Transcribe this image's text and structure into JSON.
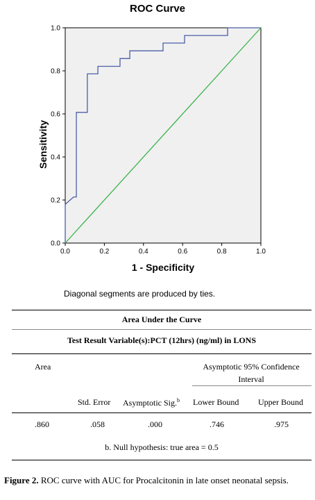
{
  "chart_data": {
    "type": "line",
    "title": "ROC Curve",
    "xlabel": "1 - Specificity",
    "ylabel": "Sensitivity",
    "xlim": [
      0.0,
      1.0
    ],
    "ylim": [
      0.0,
      1.0
    ],
    "xticks": [
      "0.0",
      "0.2",
      "0.4",
      "0.6",
      "0.8",
      "1.0"
    ],
    "yticks": [
      "0.0",
      "0.2",
      "0.4",
      "0.6",
      "0.8",
      "1.0"
    ],
    "grid": false,
    "series": [
      {
        "color": "#4a5ea8",
        "x": [
          0.0,
          0.0,
          0.043,
          0.057,
          0.057,
          0.113,
          0.113,
          0.167,
          0.167,
          0.28,
          0.28,
          0.33,
          0.33,
          0.5,
          0.5,
          0.61,
          0.61,
          0.83,
          0.83,
          1.0
        ],
        "y": [
          0.0,
          0.18,
          0.214,
          0.214,
          0.607,
          0.607,
          0.786,
          0.786,
          0.821,
          0.821,
          0.857,
          0.857,
          0.893,
          0.893,
          0.929,
          0.929,
          0.964,
          0.964,
          1.0,
          1.0
        ]
      },
      {
        "color": "#3cb44b",
        "x": [
          0.0,
          1.0
        ],
        "y": [
          0.0,
          1.0
        ]
      }
    ]
  },
  "note_ties": "Diagonal segments are produced by ties.",
  "table": {
    "title": "Area Under the Curve",
    "variable": "Test Result Variable(s):PCT (12hrs) (ng/ml) in LONS",
    "area_label": "Area",
    "ci_label_line1": "Asymptotic 95% Confidence",
    "ci_label_line2": "Interval",
    "std_error_label": "Std. Error",
    "asym_sig_label": "Asymptotic Sig.",
    "asym_sig_sup": "b",
    "lower_bound_label": "Lower Bound",
    "upper_bound_label": "Upper Bound",
    "area_value": ".860",
    "std_error_value": ".058",
    "asym_sig_value": ".000",
    "lower_bound_value": ".746",
    "upper_bound_value": ".975",
    "footnote": "b. Null hypothesis: true area = 0.5"
  },
  "caption": {
    "label": "Figure 2.",
    "text": " ROC curve with AUC for Procalcitonin in late onset neonatal sepsis."
  }
}
